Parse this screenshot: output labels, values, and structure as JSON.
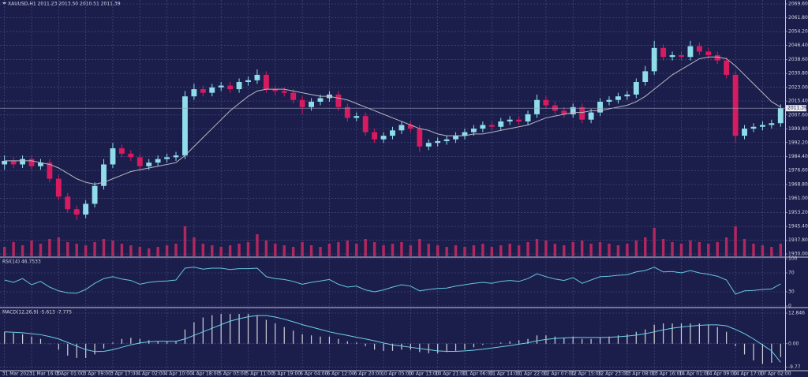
{
  "chart_data": [
    {
      "type": "candlestick",
      "title": "XAUUSD,H1  2011.23 2013.50 2010.51 2011.39",
      "categories": [
        "31 Mar 2023",
        null,
        null,
        "31 Mar 16:00",
        null,
        null,
        "3 Apr 01:00",
        null,
        null,
        "3 Apr 09:00",
        null,
        null,
        "3 Apr 17:00",
        null,
        null,
        "4 Apr 02:00",
        null,
        null,
        "4 Apr 10:00",
        null,
        null,
        "4 Apr 18:00",
        null,
        null,
        "5 Apr 03:00",
        null,
        null,
        "5 Apr 11:00",
        null,
        null,
        "5 Apr 19:00",
        null,
        null,
        "6 Apr 04:00",
        null,
        null,
        "6 Apr 12:00",
        null,
        null,
        "6 Apr 20:00",
        null,
        null,
        "10 Apr 05:00",
        null,
        null,
        "10 Apr 13:00",
        null,
        null,
        "10 Apr 21:00",
        null,
        null,
        "11 Apr 06:00",
        null,
        null,
        "11 Apr 14:00",
        null,
        null,
        "11 Apr 22:00",
        null,
        null,
        "12 Apr 07:00",
        null,
        null,
        "12 Apr 15:00",
        null,
        null,
        "12 Apr 23:00",
        null,
        null,
        "13 Apr 08:00",
        null,
        null,
        "13 Apr 16:00",
        null,
        null,
        "14 Apr 01:00",
        null,
        null,
        "14 Apr 09:00",
        null,
        null,
        "14 Apr 17:00",
        null,
        null,
        "17 Apr 02:00",
        null,
        null
      ],
      "open": [
        1980,
        1982,
        1980,
        1983,
        1979,
        1981,
        1972,
        1962,
        1955,
        1952,
        1958,
        1968,
        1980,
        1989,
        1986,
        1984,
        1979,
        1981,
        1983,
        1984,
        1985,
        2018,
        2022,
        2020,
        2023,
        2024,
        2022,
        2026,
        2027,
        2030,
        2022,
        2021,
        2020,
        2016,
        2012,
        2015,
        2017,
        2019,
        2012,
        2006,
        2007,
        1998,
        1994,
        1996,
        1999,
        2002,
        2000,
        1990,
        1992,
        1993,
        1994,
        1996,
        1998,
        2000,
        2002,
        2001,
        2004,
        2005,
        2004,
        2008,
        2016,
        2013,
        2010,
        2008,
        2012,
        2005,
        2009,
        2015,
        2016,
        2018,
        2019,
        2026,
        2032,
        2045,
        2040,
        2041,
        2040,
        2046,
        2043,
        2041,
        2038,
        2030,
        1996,
        2000,
        2001,
        2002,
        2003
      ],
      "high": [
        1985,
        1984,
        1985,
        1985,
        1983,
        1983,
        1974,
        1964,
        1957,
        1960,
        1970,
        1983,
        1992,
        1991,
        1988,
        1986,
        1983,
        1985,
        1986,
        1987,
        2021,
        2025,
        2024,
        2025,
        2026,
        2026,
        2028,
        2029,
        2033,
        2032,
        2024,
        2023,
        2022,
        2018,
        2017,
        2019,
        2021,
        2021,
        2014,
        2009,
        2009,
        2000,
        1998,
        2001,
        2004,
        2004,
        2002,
        1994,
        1995,
        1996,
        1998,
        2000,
        2002,
        2004,
        2004,
        2006,
        2007,
        2007,
        2010,
        2019,
        2018,
        2015,
        2012,
        2014,
        2014,
        2011,
        2017,
        2018,
        2020,
        2021,
        2028,
        2035,
        2049,
        2047,
        2043,
        2043,
        2049,
        2048,
        2045,
        2043,
        2040,
        2032,
        2002,
        2003,
        2004,
        2005,
        2013.5
      ],
      "low": [
        1977,
        1978,
        1978,
        1977,
        1977,
        1970,
        1960,
        1953,
        1949,
        1950,
        1956,
        1966,
        1978,
        1984,
        1982,
        1977,
        1977,
        1979,
        1981,
        1982,
        1983,
        2016,
        2018,
        2018,
        2021,
        2020,
        2020,
        2024,
        2025,
        2020,
        2019,
        2018,
        2014,
        2008,
        2010,
        2013,
        2015,
        2010,
        2004,
        2004,
        1996,
        1992,
        1992,
        1994,
        1997,
        1998,
        1987,
        1988,
        1990,
        1991,
        1992,
        1994,
        1996,
        1998,
        1999,
        1999,
        2002,
        2002,
        2002,
        2006,
        2011,
        2008,
        2006,
        2006,
        2003,
        2003,
        2007,
        2013,
        2014,
        2016,
        2017,
        2024,
        2030,
        2038,
        2038,
        2038,
        2038,
        2041,
        2039,
        2036,
        2028,
        1992,
        1994,
        1998,
        1999,
        2000,
        2001
      ],
      "close": [
        1982,
        1980,
        1983,
        1979,
        1981,
        1972,
        1962,
        1955,
        1952,
        1958,
        1968,
        1980,
        1989,
        1986,
        1984,
        1979,
        1981,
        1983,
        1984,
        1985,
        2018,
        2022,
        2020,
        2023,
        2024,
        2022,
        2026,
        2027,
        2030,
        2022,
        2021,
        2020,
        2016,
        2012,
        2015,
        2017,
        2019,
        2012,
        2006,
        2007,
        1998,
        1994,
        1996,
        1999,
        2002,
        2000,
        1990,
        1992,
        1993,
        1994,
        1996,
        1998,
        2000,
        2002,
        2001,
        2004,
        2005,
        2004,
        2008,
        2016,
        2013,
        2010,
        2008,
        2012,
        2005,
        2009,
        2015,
        2016,
        2018,
        2019,
        2026,
        2032,
        2045,
        2040,
        2041,
        2040,
        2046,
        2043,
        2041,
        2038,
        2030,
        1996,
        2000,
        2001,
        2002,
        2003,
        2011.39
      ],
      "ma_values": [
        1982,
        1982,
        1982,
        1982,
        1981,
        1980,
        1978,
        1975,
        1972,
        1970,
        1969,
        1970,
        1972,
        1974,
        1976,
        1977,
        1978,
        1979,
        1980,
        1981,
        1985,
        1990,
        1995,
        2000,
        2005,
        2010,
        2014,
        2018,
        2021,
        2022,
        2022,
        2022,
        2021,
        2020,
        2019,
        2018,
        2018,
        2017,
        2016,
        2014,
        2012,
        2010,
        2008,
        2006,
        2004,
        2002,
        2000,
        1999,
        1997,
        1996,
        1996,
        1996,
        1997,
        1997,
        1998,
        1999,
        2000,
        2001,
        2002,
        2004,
        2006,
        2007,
        2008,
        2009,
        2009,
        2010,
        2010,
        2011,
        2012,
        2013,
        2015,
        2018,
        2022,
        2026,
        2030,
        2033,
        2036,
        2039,
        2040,
        2040,
        2039,
        2035,
        2030,
        2025,
        2020,
        2015,
        2012
      ],
      "ma_color": "#b8b8c2",
      "volume": [
        30,
        45,
        35,
        50,
        40,
        55,
        60,
        45,
        40,
        35,
        45,
        55,
        50,
        40,
        35,
        30,
        25,
        30,
        35,
        40,
        95,
        60,
        40,
        35,
        30,
        35,
        40,
        45,
        70,
        50,
        40,
        35,
        30,
        45,
        35,
        30,
        40,
        45,
        50,
        40,
        55,
        45,
        35,
        40,
        45,
        35,
        55,
        40,
        35,
        30,
        35,
        30,
        35,
        40,
        30,
        35,
        40,
        35,
        45,
        55,
        50,
        40,
        35,
        45,
        50,
        40,
        45,
        40,
        35,
        40,
        50,
        60,
        90,
        55,
        45,
        40,
        50,
        45,
        40,
        45,
        60,
        95,
        55,
        40,
        35,
        30,
        40
      ],
      "volume_lim": [
        0,
        100
      ],
      "volume_color": "#b3275f",
      "up_color": "#8fdcea",
      "down_color": "#d81b60",
      "last_price": 2011.39,
      "ylim": [
        1928.68,
        2071.36
      ],
      "yticks": [
        {
          "value": 1930,
          "label": "1930.00"
        },
        {
          "value": 1937.8,
          "label": "1937.80"
        },
        {
          "value": 1945.4,
          "label": "1945.40"
        },
        {
          "value": 1953.2,
          "label": "1953.20"
        },
        {
          "value": 1961,
          "label": "1961.00"
        },
        {
          "value": 1968.8,
          "label": "1968.80"
        },
        {
          "value": 1976.6,
          "label": "1976.60"
        },
        {
          "value": 1984.4,
          "label": "1984.40"
        },
        {
          "value": 1992.2,
          "label": "1992.20"
        },
        {
          "value": 1999.8,
          "label": "1999.80"
        },
        {
          "value": 2007.6,
          "label": "2007.60"
        },
        {
          "value": 2015.4,
          "label": "2015.40"
        },
        {
          "value": 2023,
          "label": "2023.00"
        },
        {
          "value": 2030.8,
          "label": "2030.80"
        },
        {
          "value": 2038.6,
          "label": "2038.60"
        },
        {
          "value": 2046.4,
          "label": "2046.40"
        },
        {
          "value": 2054.2,
          "label": "2054.20"
        },
        {
          "value": 2061.8,
          "label": "2061.80"
        },
        {
          "value": 2069.6,
          "label": "2069.60"
        }
      ],
      "grid": true
    },
    {
      "type": "line",
      "title": "RSI(14) 46.7533",
      "values": [
        55,
        50,
        58,
        45,
        52,
        40,
        32,
        28,
        27,
        35,
        48,
        58,
        62,
        57,
        54,
        46,
        50,
        52,
        53,
        55,
        80,
        82,
        78,
        80,
        80,
        77,
        79,
        79,
        80,
        62,
        58,
        56,
        52,
        46,
        50,
        53,
        56,
        46,
        40,
        42,
        34,
        30,
        34,
        40,
        45,
        42,
        32,
        35,
        37,
        38,
        42,
        45,
        48,
        50,
        48,
        52,
        54,
        52,
        58,
        68,
        62,
        57,
        54,
        60,
        48,
        55,
        62,
        63,
        65,
        66,
        72,
        75,
        82,
        72,
        73,
        70,
        75,
        70,
        67,
        63,
        55,
        25,
        32,
        33,
        35,
        36,
        46.7533
      ],
      "color": "#66c6e0",
      "ylim": [
        0,
        100
      ],
      "yticks": [
        0,
        30,
        70,
        100
      ],
      "grid": true
    },
    {
      "type": "macd",
      "title": "MACD(12,26,9) -5.613 -7.775",
      "values": [
        5,
        4.5,
        4,
        3,
        2,
        0,
        -2.5,
        -5,
        -6,
        -6,
        -4.5,
        -2,
        0.5,
        2,
        2.5,
        2,
        1.5,
        1,
        1,
        1,
        6,
        9,
        11,
        12,
        12.5,
        12.5,
        12.5,
        12.5,
        12,
        10,
        8.5,
        7,
        5.5,
        4,
        3.5,
        3,
        3,
        2,
        1,
        0.5,
        -1,
        -2.5,
        -3,
        -3,
        -2.5,
        -2.5,
        -3.5,
        -4,
        -4,
        -3.5,
        -3,
        -2.5,
        -1.5,
        -0.5,
        0,
        0.5,
        1,
        1.5,
        2,
        3.5,
        3.5,
        3,
        2.5,
        3,
        2,
        2,
        2.5,
        3,
        3.5,
        4,
        5,
        6,
        8,
        8.5,
        8.5,
        8.5,
        8.5,
        8.5,
        8,
        7,
        5,
        -1,
        -4.5,
        -7,
        -8.5,
        -8,
        -5.613
      ],
      "signal": [
        5,
        4.8,
        4.6,
        4.2,
        3.8,
        3,
        2,
        0.5,
        -1,
        -2.5,
        -3.3,
        -3.2,
        -2.5,
        -1.5,
        -0.5,
        0.3,
        0.8,
        1,
        1,
        1,
        2,
        3.5,
        5,
        6.5,
        8,
        9.5,
        10.5,
        11.3,
        11.8,
        11.8,
        11.2,
        10.3,
        9.2,
        8,
        7,
        6,
        5,
        4.2,
        3.5,
        2.7,
        2,
        1.2,
        0.3,
        -0.5,
        -1,
        -1.5,
        -2,
        -2.5,
        -3,
        -3.2,
        -3.2,
        -3,
        -2.7,
        -2.3,
        -1.8,
        -1.3,
        -0.8,
        -0.2,
        0.4,
        1.2,
        1.8,
        2.2,
        2.4,
        2.6,
        2.6,
        2.6,
        2.6,
        2.7,
        2.9,
        3.2,
        3.6,
        4.2,
        5,
        5.8,
        6.5,
        7,
        7.4,
        7.7,
        7.9,
        7.9,
        7.5,
        6,
        4.2,
        2,
        -0.5,
        -3,
        -7.775
      ],
      "color": "#d0d0da",
      "signal_color": "#6fd0e8",
      "ylim": [
        -11,
        14.5
      ],
      "yticks": [
        -9.77,
        {
          "value": 0,
          "label": "0.00"
        },
        12.846
      ],
      "grid": true
    }
  ]
}
